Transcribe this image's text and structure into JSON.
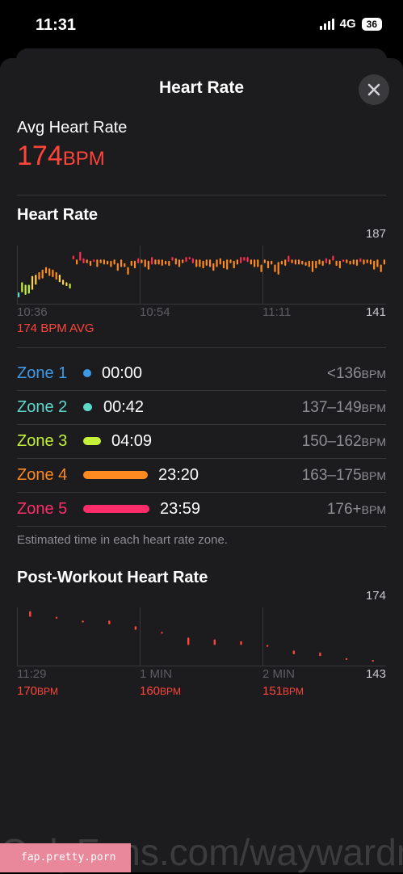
{
  "status_bar": {
    "time": "11:31",
    "network": "4G",
    "battery": "36"
  },
  "sheet": {
    "title": "Heart Rate"
  },
  "summary": {
    "label": "Avg Heart Rate",
    "value": "174",
    "unit": "BPM"
  },
  "heart_rate_chart": {
    "title": "Heart Rate",
    "y_max": "187",
    "y_min": "141",
    "x_labels": [
      "10:36",
      "10:54",
      "11:11"
    ],
    "avg_label": "174 BPM AVG",
    "chart_data": {
      "type": "bar",
      "ylim": [
        141,
        187
      ],
      "x_labels": [
        "10:36",
        "10:54",
        "11:11"
      ],
      "ranges": [
        [
          146,
          150
        ],
        [
          150,
          158
        ],
        [
          148,
          156
        ],
        [
          149,
          156
        ],
        [
          152,
          163
        ],
        [
          156,
          164
        ],
        [
          160,
          166
        ],
        [
          161,
          168
        ],
        [
          165,
          170
        ],
        [
          163,
          169
        ],
        [
          162,
          168
        ],
        [
          160,
          166
        ],
        [
          158,
          164
        ],
        [
          156,
          160
        ],
        [
          155,
          158
        ],
        [
          153,
          157
        ],
        [
          176,
          179
        ],
        [
          172,
          176
        ],
        [
          175,
          182
        ],
        [
          173,
          177
        ],
        [
          173,
          176
        ],
        [
          171,
          175
        ],
        [
          174,
          176
        ],
        [
          170,
          176
        ],
        [
          173,
          176
        ],
        [
          172,
          176
        ],
        [
          172,
          175
        ],
        [
          170,
          175
        ],
        [
          172,
          176
        ],
        [
          167,
          173
        ],
        [
          170,
          176
        ],
        [
          170,
          173
        ],
        [
          164,
          170
        ],
        [
          171,
          175
        ],
        [
          169,
          175
        ],
        [
          173,
          177
        ],
        [
          173,
          176
        ],
        [
          170,
          176
        ],
        [
          168,
          175
        ],
        [
          172,
          178
        ],
        [
          172,
          176
        ],
        [
          172,
          176
        ],
        [
          171,
          176
        ],
        [
          172,
          175
        ],
        [
          171,
          175
        ],
        [
          175,
          178
        ],
        [
          172,
          177
        ],
        [
          170,
          176
        ],
        [
          173,
          176
        ],
        [
          174,
          178
        ],
        [
          176,
          178
        ],
        [
          173,
          177
        ],
        [
          170,
          176
        ],
        [
          170,
          176
        ],
        [
          169,
          175
        ],
        [
          171,
          176
        ],
        [
          170,
          176
        ],
        [
          167,
          173
        ],
        [
          170,
          176
        ],
        [
          172,
          177
        ],
        [
          169,
          175
        ],
        [
          168,
          176
        ],
        [
          173,
          176
        ],
        [
          169,
          175
        ],
        [
          172,
          176
        ],
        [
          173,
          178
        ],
        [
          175,
          178
        ],
        [
          174,
          178
        ],
        [
          172,
          176
        ],
        [
          170,
          176
        ],
        [
          170,
          176
        ],
        [
          166,
          172
        ],
        [
          173,
          176
        ],
        [
          169,
          175
        ],
        [
          172,
          175
        ],
        [
          166,
          172
        ],
        [
          164,
          174
        ],
        [
          172,
          175
        ],
        [
          171,
          176
        ],
        [
          174,
          179
        ],
        [
          173,
          176
        ],
        [
          172,
          176
        ],
        [
          172,
          176
        ],
        [
          172,
          175
        ],
        [
          171,
          174
        ],
        [
          170,
          175
        ],
        [
          166,
          175
        ],
        [
          169,
          175
        ],
        [
          172,
          176
        ],
        [
          171,
          175
        ],
        [
          173,
          177
        ],
        [
          172,
          176
        ],
        [
          175,
          179
        ],
        [
          171,
          175
        ],
        [
          169,
          175
        ],
        [
          174,
          176
        ],
        [
          173,
          176
        ],
        [
          172,
          175
        ],
        [
          172,
          176
        ],
        [
          171,
          176
        ],
        [
          174,
          177
        ],
        [
          172,
          176
        ],
        [
          173,
          176
        ],
        [
          172,
          176
        ],
        [
          168,
          175
        ],
        [
          170,
          176
        ],
        [
          166,
          172
        ],
        [
          172,
          176
        ]
      ]
    }
  },
  "zones": {
    "items": [
      {
        "name": "Zone 1",
        "time": "00:00",
        "range": "<136",
        "unit": "BPM",
        "color": "#3d9ae8",
        "minutes": 0.0
      },
      {
        "name": "Zone 2",
        "time": "00:42",
        "range": "137–149",
        "unit": "BPM",
        "color": "#5fd8cc",
        "minutes": 0.7
      },
      {
        "name": "Zone 3",
        "time": "04:09",
        "range": "150–162",
        "unit": "BPM",
        "color": "#c4f03a",
        "minutes": 4.15
      },
      {
        "name": "Zone 4",
        "time": "23:20",
        "range": "163–175",
        "unit": "BPM",
        "color": "#ff8a1f",
        "minutes": 23.33
      },
      {
        "name": "Zone 5",
        "time": "23:59",
        "range": "176+",
        "unit": "BPM",
        "color": "#ff2d6b",
        "minutes": 23.98
      }
    ],
    "footnote": "Estimated time in each heart rate zone."
  },
  "post_workout": {
    "title": "Post-Workout Heart Rate",
    "y_max": "174",
    "y_min": "143",
    "x_labels": [
      "11:29",
      "1 MIN",
      "2 MIN"
    ],
    "readings": [
      {
        "value": "170",
        "unit": "BPM"
      },
      {
        "value": "160",
        "unit": "BPM"
      },
      {
        "value": "151",
        "unit": "BPM"
      }
    ],
    "chart_data": {
      "type": "bar",
      "ylim": [
        143,
        174
      ],
      "x_labels": [
        "11:29",
        "1 MIN",
        "2 MIN"
      ],
      "ranges": [
        [
          169,
          172
        ],
        [
          168,
          169
        ],
        [
          166,
          167
        ],
        [
          165,
          167
        ],
        [
          162,
          164
        ],
        [
          160,
          161
        ],
        [
          154,
          158
        ],
        [
          154,
          157
        ],
        [
          154,
          156
        ],
        [
          153,
          154
        ],
        [
          149,
          151
        ],
        [
          148,
          150
        ],
        [
          146,
          147
        ],
        [
          145,
          146
        ]
      ]
    }
  },
  "watermark": {
    "text": "OnlyFans.com/waywardme",
    "tag": "fap.pretty.porn"
  }
}
